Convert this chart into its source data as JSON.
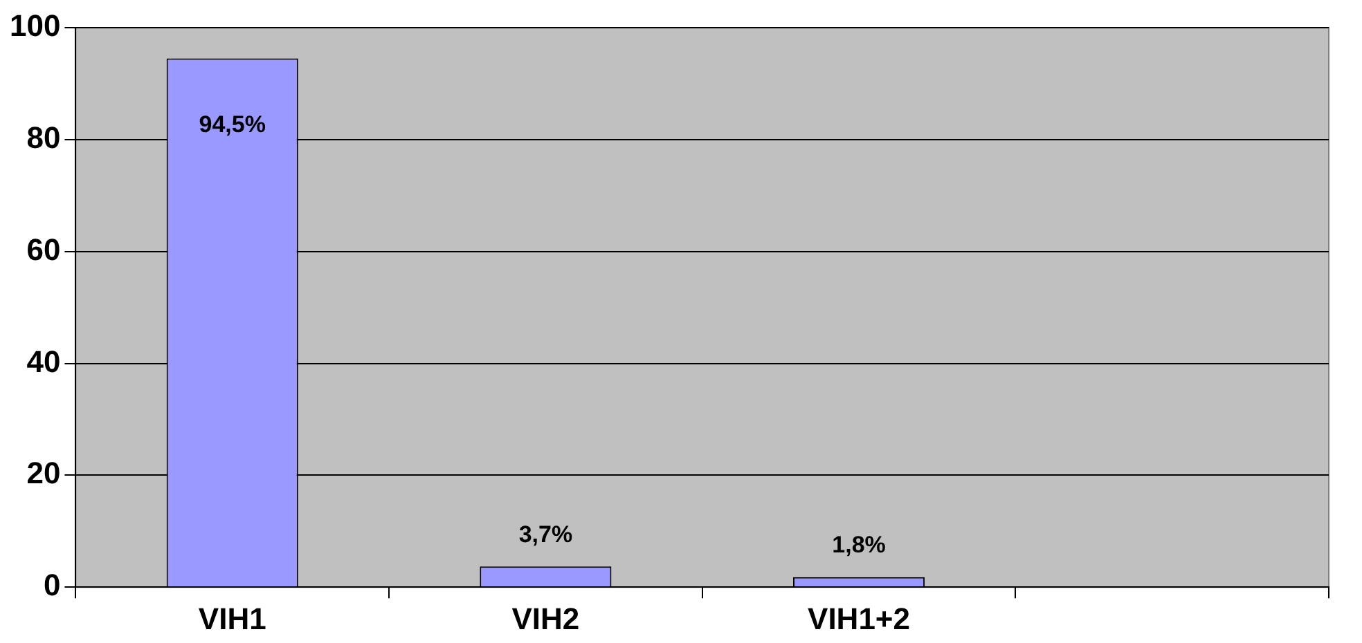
{
  "chart_data": {
    "type": "bar",
    "categories": [
      "VIH1",
      "VIH2",
      "VIH1+2",
      null
    ],
    "values": [
      94.5,
      3.7,
      1.8,
      null
    ],
    "color": "#9999ff",
    "value_labels": [
      "94,5%",
      "3,7%",
      "1,8%",
      null
    ],
    "ylim": [
      0,
      100
    ],
    "yticks": [
      0,
      20,
      40,
      60,
      80,
      100
    ],
    "grid": "y",
    "legend": false
  }
}
